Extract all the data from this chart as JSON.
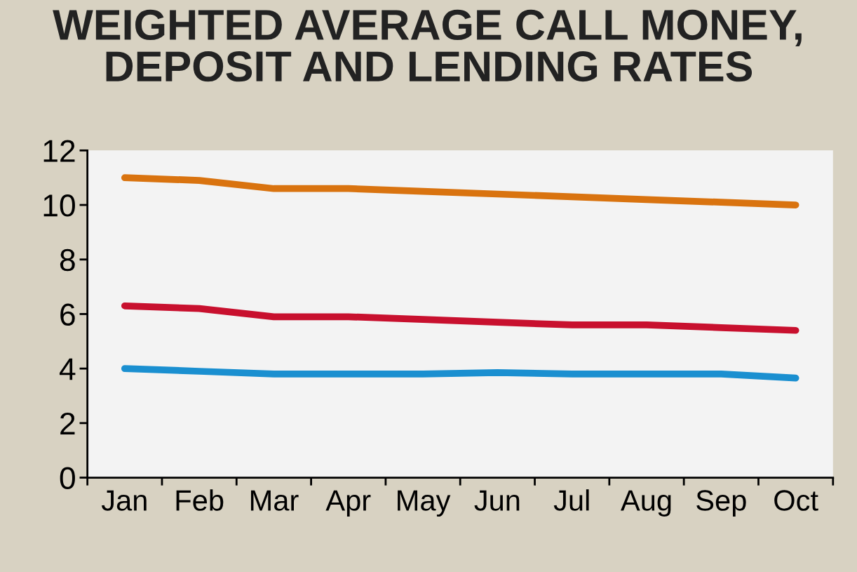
{
  "chart_data": {
    "type": "line",
    "title": "WEIGHTED AVERAGE CALL MONEY,\nDEPOSIT AND LENDING RATES",
    "categories": [
      "Jan",
      "Feb",
      "Mar",
      "Apr",
      "May",
      "Jun",
      "Jul",
      "Aug",
      "Sep",
      "Oct"
    ],
    "series": [
      {
        "color": "#d9730f",
        "values": [
          11.0,
          10.9,
          10.6,
          10.6,
          10.5,
          10.4,
          10.3,
          10.2,
          10.1,
          10.0
        ]
      },
      {
        "color": "#c8102e",
        "values": [
          6.3,
          6.2,
          5.9,
          5.9,
          5.8,
          5.7,
          5.6,
          5.6,
          5.5,
          5.4
        ]
      },
      {
        "color": "#1a8fd0",
        "values": [
          4.0,
          3.9,
          3.8,
          3.8,
          3.8,
          3.85,
          3.8,
          3.8,
          3.8,
          3.65
        ]
      }
    ],
    "ylim": [
      0,
      12
    ],
    "yticks": [
      0,
      2,
      4,
      6,
      8,
      10,
      12
    ],
    "grid": false,
    "legend": false,
    "marker": "none",
    "line_style": "solid"
  }
}
